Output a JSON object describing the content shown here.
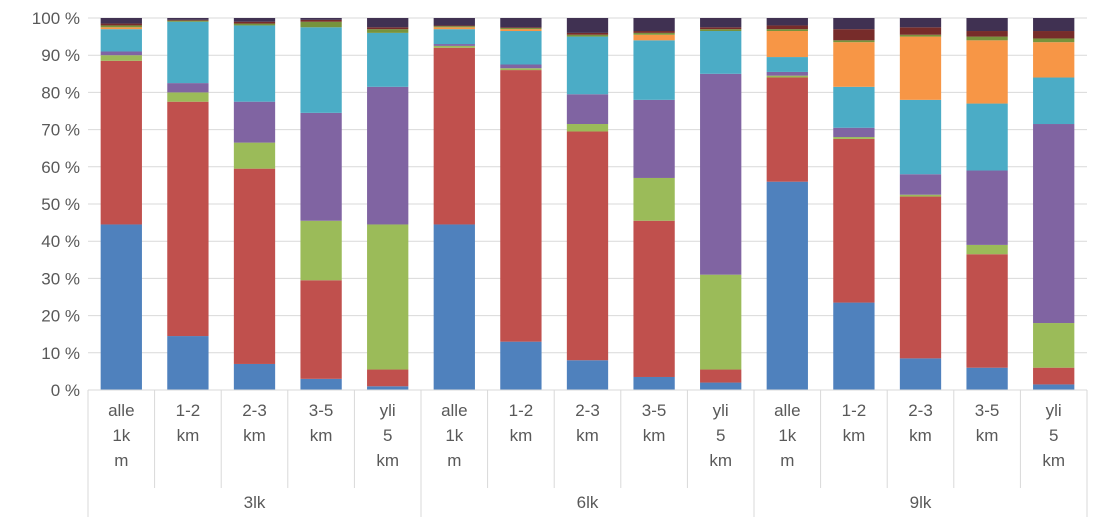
{
  "chart_data": {
    "type": "bar",
    "stacked": true,
    "percent": true,
    "title": "",
    "xlabel": "",
    "ylabel": "",
    "ylim": [
      0,
      100
    ],
    "yticks": [
      "0 %",
      "10 %",
      "20 %",
      "30 %",
      "40 %",
      "50 %",
      "60 %",
      "70 %",
      "80 %",
      "90 %",
      "100 %"
    ],
    "grid": true,
    "legend": "none",
    "groups": [
      {
        "label": "3lk",
        "categories": [
          [
            "alle",
            "1k",
            "m"
          ],
          [
            "1-2",
            "km"
          ],
          [
            "2-3",
            "km"
          ],
          [
            "3-5",
            "km"
          ],
          [
            "yli",
            "5",
            "km"
          ]
        ]
      },
      {
        "label": "6lk",
        "categories": [
          [
            "alle",
            "1k",
            "m"
          ],
          [
            "1-2",
            "km"
          ],
          [
            "2-3",
            "km"
          ],
          [
            "3-5",
            "km"
          ],
          [
            "yli",
            "5",
            "km"
          ]
        ]
      },
      {
        "label": "9lk",
        "categories": [
          [
            "alle",
            "1k",
            "m"
          ],
          [
            "1-2",
            "km"
          ],
          [
            "2-3",
            "km"
          ],
          [
            "3-5",
            "km"
          ],
          [
            "yli",
            "5",
            "km"
          ]
        ]
      }
    ],
    "series": [
      {
        "color": "#4f81bd",
        "values": [
          44.5,
          14.5,
          7,
          3,
          1,
          44.5,
          13,
          8,
          3.5,
          2,
          56,
          23.5,
          8.5,
          6,
          1.5
        ]
      },
      {
        "color": "#c0504d",
        "values": [
          44,
          63,
          52.5,
          26.5,
          4.5,
          47.5,
          73,
          61.5,
          42,
          3.5,
          28,
          44,
          43.5,
          30.5,
          4.5
        ]
      },
      {
        "color": "#9bbb59",
        "values": [
          1.5,
          2.5,
          7,
          16,
          39,
          0.5,
          0.5,
          2,
          11.5,
          25.5,
          0.5,
          0.5,
          0.5,
          2.5,
          12
        ]
      },
      {
        "color": "#8064a2",
        "values": [
          1,
          2.5,
          11,
          29,
          37,
          0.5,
          1,
          8,
          21,
          54,
          1,
          2.5,
          5.5,
          20,
          53.5
        ]
      },
      {
        "color": "#4bacc6",
        "values": [
          6,
          16.5,
          20.5,
          23,
          14.5,
          4,
          9,
          15.5,
          16,
          11.5,
          4,
          11,
          20,
          18,
          12.5
        ]
      },
      {
        "color": "#f79646",
        "values": [
          0.5,
          0,
          0,
          0,
          0,
          0.5,
          0.5,
          0,
          1.5,
          0,
          7,
          12,
          17,
          17,
          9.5
        ]
      },
      {
        "color": "#77933c",
        "values": [
          0.5,
          0.3,
          0.5,
          1.5,
          1,
          0.3,
          0.3,
          0.5,
          0.5,
          0.5,
          0.5,
          0.5,
          0.5,
          1,
          1
        ]
      },
      {
        "color": "#772c2a",
        "values": [
          0.5,
          0.2,
          0.5,
          0.5,
          0.5,
          0.2,
          0.2,
          0.5,
          0.5,
          0.5,
          1,
          3,
          2,
          1.5,
          2
        ]
      },
      {
        "color": "#403152",
        "values": [
          1.5,
          0.5,
          1,
          0.5,
          2.5,
          2,
          2.5,
          4,
          3.5,
          2.5,
          2,
          3,
          2.5,
          3.5,
          3.5
        ]
      }
    ]
  }
}
